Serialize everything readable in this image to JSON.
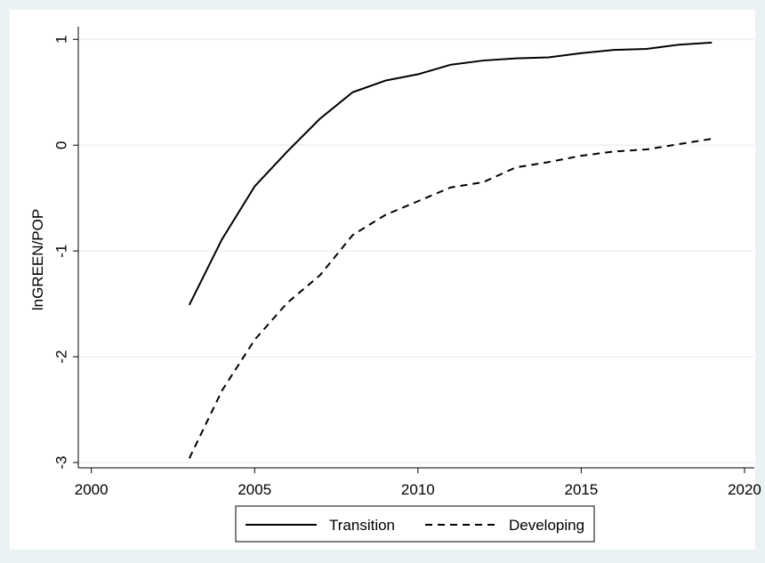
{
  "chart_data": {
    "type": "line",
    "title": "",
    "xlabel": "",
    "ylabel": "lnGREEN/POP",
    "xlim": [
      1999.6,
      2020.3
    ],
    "ylim": [
      -3.05,
      1.12
    ],
    "xticks": [
      2000,
      2005,
      2010,
      2015,
      2020
    ],
    "yticks": [
      -3,
      -2,
      -1,
      0,
      1
    ],
    "grid": true,
    "legend_position": "bottom",
    "series": [
      {
        "name": "Transition",
        "style": "solid",
        "color": "#000000",
        "x": [
          2003,
          2004,
          2005,
          2006,
          2007,
          2008,
          2009,
          2010,
          2011,
          2012,
          2013,
          2014,
          2015,
          2016,
          2017,
          2018,
          2019
        ],
        "y": [
          -1.51,
          -0.89,
          -0.39,
          -0.06,
          0.25,
          0.5,
          0.61,
          0.67,
          0.76,
          0.8,
          0.82,
          0.83,
          0.87,
          0.9,
          0.91,
          0.95,
          0.97
        ]
      },
      {
        "name": "Developing",
        "style": "dashed",
        "color": "#000000",
        "x": [
          2003,
          2004,
          2005,
          2006,
          2007,
          2008,
          2009,
          2010,
          2011,
          2012,
          2013,
          2014,
          2015,
          2016,
          2017,
          2018,
          2019
        ],
        "y": [
          -2.96,
          -2.32,
          -1.84,
          -1.49,
          -1.23,
          -0.85,
          -0.66,
          -0.53,
          -0.4,
          -0.35,
          -0.21,
          -0.16,
          -0.1,
          -0.06,
          -0.04,
          0.01,
          0.06
        ]
      }
    ]
  }
}
